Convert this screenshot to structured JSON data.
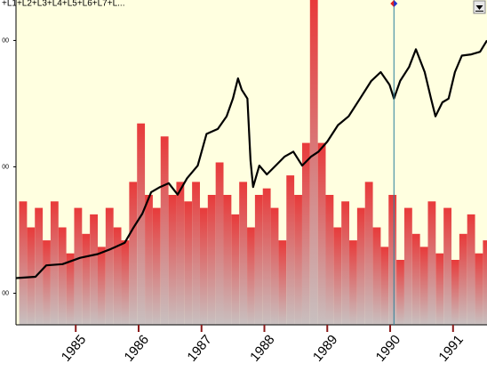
{
  "chart_data": {
    "type": "line",
    "legend_text": "+L1+L2+L3+L4+L5+L6+L7+L...",
    "background": "#ffffe0",
    "xlim": [
      1984.05,
      1991.54
    ],
    "xticks": [
      1985,
      1986,
      1987,
      1988,
      1989,
      1990,
      1991
    ],
    "ylim": [
      75,
      332
    ],
    "yticks": [
      {
        "value": 300,
        "label": "00"
      },
      {
        "value": 200,
        "label": "00"
      },
      {
        "value": 100,
        "label": "00"
      }
    ],
    "y2lim": [
      0,
      100
    ],
    "cursor_x": 1990.06,
    "cursor_color": "#2a7f9a",
    "series": [
      {
        "type": "bar",
        "axis": "y2",
        "color": "#e83a3a",
        "base_color": "#c8c0c0",
        "bar_width": 0.125,
        "x": [
          1984.1,
          1984.225,
          1984.35,
          1984.475,
          1984.6,
          1984.725,
          1984.85,
          1984.975,
          1985.1,
          1985.225,
          1985.35,
          1985.475,
          1985.6,
          1985.725,
          1985.85,
          1985.975,
          1986.1,
          1986.225,
          1986.35,
          1986.475,
          1986.6,
          1986.725,
          1986.85,
          1986.975,
          1987.1,
          1987.225,
          1987.35,
          1987.475,
          1987.6,
          1987.725,
          1987.85,
          1987.975,
          1988.1,
          1988.225,
          1988.35,
          1988.475,
          1988.6,
          1988.725,
          1988.85,
          1988.975,
          1989.1,
          1989.225,
          1989.35,
          1989.475,
          1989.6,
          1989.725,
          1989.85,
          1989.975,
          1990.1,
          1990.225,
          1990.35,
          1990.475,
          1990.6,
          1990.725,
          1990.85,
          1990.975,
          1991.1,
          1991.225,
          1991.35,
          1991.475
        ],
        "values": [
          38,
          30,
          36,
          26,
          38,
          30,
          22,
          36,
          28,
          34,
          24,
          36,
          30,
          26,
          44,
          62,
          40,
          36,
          58,
          40,
          44,
          38,
          44,
          36,
          40,
          50,
          40,
          34,
          44,
          30,
          40,
          42,
          36,
          26,
          46,
          40,
          56,
          100,
          56,
          40,
          30,
          38,
          26,
          36,
          44,
          30,
          24,
          40,
          20,
          36,
          28,
          24,
          38,
          22,
          36,
          20,
          28,
          34,
          22,
          26
        ]
      },
      {
        "type": "line",
        "color": "#000000",
        "x": [
          1984.05,
          1984.36,
          1984.53,
          1984.79,
          1985.07,
          1985.35,
          1985.56,
          1985.78,
          1985.92,
          1986.06,
          1986.2,
          1986.34,
          1986.48,
          1986.62,
          1986.77,
          1986.94,
          1987.08,
          1987.26,
          1987.4,
          1987.5,
          1987.58,
          1987.64,
          1987.73,
          1987.78,
          1987.82,
          1987.92,
          1988.04,
          1988.18,
          1988.32,
          1988.46,
          1988.6,
          1988.74,
          1988.86,
          1989.0,
          1989.17,
          1989.34,
          1989.52,
          1989.7,
          1989.85,
          1989.99,
          1990.06,
          1990.16,
          1990.3,
          1990.41,
          1990.55,
          1990.65,
          1990.72,
          1990.83,
          1990.93,
          1991.03,
          1991.14,
          1991.29,
          1991.43,
          1991.54
        ],
        "values": [
          112,
          113,
          122,
          123,
          128,
          131,
          135,
          140,
          152,
          163,
          180,
          184,
          187,
          178,
          191,
          201,
          226,
          230,
          240,
          254,
          270,
          261,
          254,
          205,
          184,
          201,
          194,
          201,
          208,
          212,
          201,
          208,
          212,
          220,
          233,
          240,
          254,
          268,
          275,
          265,
          254,
          268,
          279,
          293,
          275,
          254,
          240,
          251,
          254,
          275,
          288,
          289,
          291,
          300
        ]
      }
    ]
  }
}
